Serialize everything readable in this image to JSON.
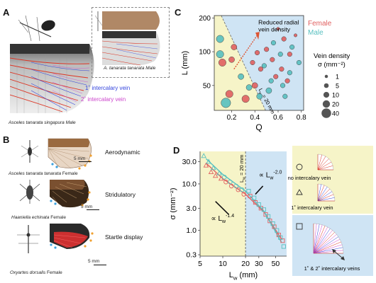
{
  "panels": {
    "A": "A",
    "B": "B",
    "C": "C",
    "D": "D"
  },
  "panel_a": {
    "species_main": "Asceles tanarata singapura Male",
    "species_inset": "A. tanarata tanarata Male",
    "legend_1": "1˚ intercalary vein",
    "legend_2": "2˚ intercalary vein",
    "colors": {
      "primary_vein": "#3344dd",
      "secondary_vein": "#cc44cc",
      "main_vein": "#dd3322"
    }
  },
  "panel_b": {
    "rows": [
      {
        "function": "Aerodynamic",
        "species": "Asceles tanarata tanarata",
        "sex": " Female",
        "scale": "5 mm"
      },
      {
        "function": "Stridulatory",
        "species": "Haaniella echinata",
        "sex": " Female",
        "scale": "5 mm"
      },
      {
        "function": "Startle display",
        "species": "Oxyartes dorsalis",
        "sex": " Female",
        "scale": "5 mm"
      }
    ]
  },
  "panel_c": {
    "annotation": "Reduced radial vein density",
    "line_label": "L",
    "line_label_sub": "w",
    "line_label_val": " = 20 mm",
    "sex_female": "Female",
    "sex_male": "Male",
    "size_legend_title": "Vein density",
    "size_legend_unit": "σ (mm⁻²)",
    "size_values": [
      1,
      5,
      10,
      20,
      40
    ],
    "colors": {
      "female": "#e06060",
      "male": "#58c0c0",
      "blue_region": "#cfe4f4",
      "yellow_region": "#f6f4c8",
      "arrow": "#dd5533"
    }
  },
  "panel_d": {
    "threshold_label": "L",
    "threshold_sub": "w",
    "threshold_val": " = 20 mm",
    "slope_left": "∝ L",
    "slope_left_sub": "w",
    "slope_left_exp": "-1.4",
    "slope_right": "∝ L",
    "slope_right_sub": "w",
    "slope_right_exp": "-2.0",
    "legend": [
      {
        "marker": "circle",
        "label": "no intercalary vein"
      },
      {
        "marker": "triangle",
        "label": "1˚ intercalary vein"
      },
      {
        "marker": "square",
        "label": "1˚ & 2˚ intercalary veins"
      }
    ],
    "colors": {
      "female": "#e06060",
      "male": "#58c0c0",
      "blue_region": "#cfe4f4",
      "yellow_region": "#f6f4c8"
    }
  },
  "chart_data": [
    {
      "type": "scatter",
      "panel": "C",
      "xlabel": "Q",
      "ylabel": "L (mm)",
      "xticks": [
        "0.2",
        "0.4",
        "0.6",
        "0.8"
      ],
      "yticks": [
        "50",
        "100",
        "200"
      ],
      "xlim": [
        0.05,
        0.82
      ],
      "ylim": [
        30,
        210
      ],
      "yscale": "log",
      "regions": [
        "yellow (low Q)",
        "blue (high Q)"
      ],
      "divider_line_Q_at_L": [
        [
          0.12,
          200
        ],
        [
          0.52,
          26
        ]
      ],
      "series": [
        {
          "name": "Female",
          "points": [
            {
              "x": 0.12,
              "y": 80,
              "s": 20
            },
            {
              "x": 0.2,
              "y": 85,
              "s": 10
            },
            {
              "x": 0.22,
              "y": 110,
              "s": 10
            },
            {
              "x": 0.18,
              "y": 42,
              "s": 20
            },
            {
              "x": 0.32,
              "y": 38,
              "s": 20
            },
            {
              "x": 0.4,
              "y": 50,
              "s": 10
            },
            {
              "x": 0.42,
              "y": 98,
              "s": 5
            },
            {
              "x": 0.45,
              "y": 70,
              "s": 5
            },
            {
              "x": 0.5,
              "y": 105,
              "s": 5
            },
            {
              "x": 0.55,
              "y": 85,
              "s": 5
            },
            {
              "x": 0.6,
              "y": 160,
              "s": 1
            },
            {
              "x": 0.63,
              "y": 70,
              "s": 5
            },
            {
              "x": 0.65,
              "y": 130,
              "s": 5
            },
            {
              "x": 0.7,
              "y": 95,
              "s": 5
            },
            {
              "x": 0.75,
              "y": 140,
              "s": 1
            },
            {
              "x": 0.38,
              "y": 80,
              "s": 5
            },
            {
              "x": 0.58,
              "y": 60,
              "s": 5
            },
            {
              "x": 0.68,
              "y": 55,
              "s": 5
            }
          ]
        },
        {
          "name": "Male",
          "points": [
            {
              "x": 0.1,
              "y": 95,
              "s": 20
            },
            {
              "x": 0.1,
              "y": 130,
              "s": 20
            },
            {
              "x": 0.15,
              "y": 35,
              "s": 40
            },
            {
              "x": 0.28,
              "y": 60,
              "s": 10
            },
            {
              "x": 0.35,
              "y": 48,
              "s": 10
            },
            {
              "x": 0.44,
              "y": 40,
              "s": 10
            },
            {
              "x": 0.48,
              "y": 75,
              "s": 5
            },
            {
              "x": 0.52,
              "y": 45,
              "s": 10
            },
            {
              "x": 0.56,
              "y": 120,
              "s": 5
            },
            {
              "x": 0.62,
              "y": 95,
              "s": 5
            },
            {
              "x": 0.66,
              "y": 40,
              "s": 5
            },
            {
              "x": 0.7,
              "y": 65,
              "s": 5
            },
            {
              "x": 0.72,
              "y": 110,
              "s": 5
            },
            {
              "x": 0.78,
              "y": 80,
              "s": 5
            },
            {
              "x": 0.64,
              "y": 50,
              "s": 5
            },
            {
              "x": 0.54,
              "y": 55,
              "s": 5
            }
          ]
        }
      ]
    },
    {
      "type": "scatter",
      "panel": "D",
      "xlabel": "L",
      "xlabel_sub": "w",
      "xlabel_unit": " (mm)",
      "ylabel": "σ (mm⁻²)",
      "xscale": "log",
      "yscale": "log",
      "xticks": [
        "5",
        "10",
        "20",
        "30",
        "50"
      ],
      "yticks": [
        "0.3",
        "1.0",
        "3.0",
        "10.0",
        "30.0"
      ],
      "xlim": [
        5,
        70
      ],
      "ylim": [
        0.28,
        50
      ],
      "threshold_x": 20,
      "fits": [
        {
          "name": "Female",
          "points": [
            [
              6,
              28
            ],
            [
              10,
              13
            ],
            [
              20,
              6
            ],
            [
              35,
              2.5
            ],
            [
              60,
              0.65
            ]
          ]
        },
        {
          "name": "Male",
          "points": [
            [
              6,
              35
            ],
            [
              10,
              16
            ],
            [
              20,
              7
            ],
            [
              35,
              2.6
            ],
            [
              60,
              0.55
            ]
          ]
        }
      ],
      "series": [
        {
          "name": "Female",
          "points": [
            {
              "x": 6,
              "y": 25,
              "m": "triangle"
            },
            {
              "x": 7,
              "y": 18,
              "m": "triangle"
            },
            {
              "x": 8,
              "y": 15,
              "m": "triangle"
            },
            {
              "x": 9.5,
              "y": 13,
              "m": "triangle"
            },
            {
              "x": 11,
              "y": 11,
              "m": "circle"
            },
            {
              "x": 13,
              "y": 9,
              "m": "circle"
            },
            {
              "x": 16,
              "y": 7.5,
              "m": "circle"
            },
            {
              "x": 19,
              "y": 6,
              "m": "circle"
            },
            {
              "x": 23,
              "y": 5.5,
              "m": "square"
            },
            {
              "x": 27,
              "y": 4,
              "m": "square"
            },
            {
              "x": 32,
              "y": 3,
              "m": "square"
            },
            {
              "x": 37,
              "y": 2.2,
              "m": "square"
            },
            {
              "x": 42,
              "y": 1.6,
              "m": "square"
            },
            {
              "x": 48,
              "y": 1.2,
              "m": "square"
            },
            {
              "x": 55,
              "y": 0.8,
              "m": "square"
            },
            {
              "x": 62,
              "y": 0.6,
              "m": "square"
            }
          ]
        },
        {
          "name": "Male",
          "points": [
            {
              "x": 5.6,
              "y": 40,
              "m": "triangle"
            },
            {
              "x": 6.5,
              "y": 30,
              "m": "triangle"
            },
            {
              "x": 7.5,
              "y": 22,
              "m": "triangle"
            },
            {
              "x": 9,
              "y": 17,
              "m": "triangle"
            },
            {
              "x": 10.5,
              "y": 14,
              "m": "circle"
            },
            {
              "x": 12.5,
              "y": 11,
              "m": "circle"
            },
            {
              "x": 15,
              "y": 9,
              "m": "circle"
            },
            {
              "x": 18,
              "y": 7.5,
              "m": "circle"
            },
            {
              "x": 22,
              "y": 7,
              "m": "square"
            },
            {
              "x": 26,
              "y": 5,
              "m": "square"
            },
            {
              "x": 30,
              "y": 3.6,
              "m": "square"
            },
            {
              "x": 35,
              "y": 2.8,
              "m": "square"
            },
            {
              "x": 40,
              "y": 2,
              "m": "square"
            },
            {
              "x": 46,
              "y": 1.4,
              "m": "square"
            },
            {
              "x": 52,
              "y": 1.0,
              "m": "square"
            },
            {
              "x": 58,
              "y": 0.7,
              "m": "square"
            },
            {
              "x": 64,
              "y": 0.45,
              "m": "square"
            }
          ]
        }
      ]
    }
  ]
}
